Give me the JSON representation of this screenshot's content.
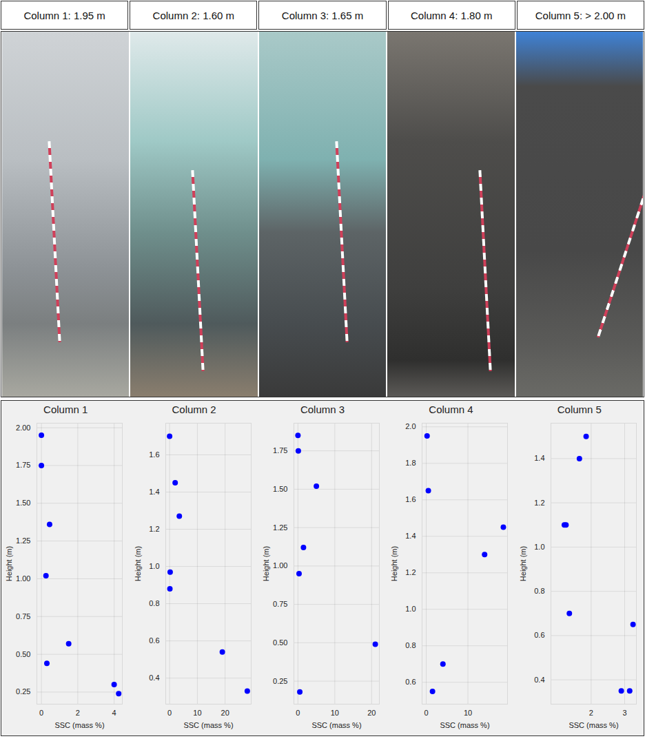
{
  "header": [
    "Column 1: 1.95 m",
    "Column 2: 1.60 m",
    "Column 3: 1.65 m",
    "Column 4: 1.80 m",
    "Column 5: > 2.00 m"
  ],
  "chart_data": [
    {
      "type": "scatter",
      "title": "Column 1",
      "xlabel": "SSC (mass %)",
      "ylabel": "Height (m)",
      "x": [
        0,
        0,
        0.45,
        0.25,
        1.5,
        0.3,
        4.0,
        4.25
      ],
      "values": [
        1.95,
        1.75,
        1.36,
        1.02,
        0.57,
        0.44,
        0.3,
        0.24
      ],
      "color": "#0000ff",
      "marker": "circle",
      "grid": true,
      "xlim": [
        -0.25,
        4.45
      ],
      "xticks": [
        0,
        2,
        4
      ],
      "ylim": [
        0.17,
        2.03
      ],
      "yticks": [
        0.25,
        {
          "value": 0.5,
          "label": "0.50"
        },
        0.75,
        {
          "value": 1,
          "label": "1.00"
        },
        1.25,
        {
          "value": 1.5,
          "label": "1.50"
        },
        1.75,
        {
          "value": 2,
          "label": "2.00"
        }
      ]
    },
    {
      "type": "scatter",
      "title": "Column 2",
      "xlabel": "SSC (mass %)",
      "ylabel": "Height (m)",
      "x": [
        0,
        2,
        3.5,
        0.2,
        0.1,
        19,
        28
      ],
      "values": [
        1.7,
        1.45,
        1.27,
        0.97,
        0.88,
        0.54,
        0.33
      ],
      "color": "#0000ff",
      "marker": "circle",
      "grid": true,
      "xlim": [
        -1.4,
        29.4
      ],
      "xticks": [
        0,
        10,
        20
      ],
      "ylim": [
        0.26,
        1.77
      ],
      "yticks": [
        0.4,
        0.6,
        0.8,
        {
          "value": 1,
          "label": "1.0"
        },
        1.2,
        1.4,
        1.6
      ]
    },
    {
      "type": "scatter",
      "title": "Column 3",
      "xlabel": "SSC (mass %)",
      "ylabel": "Height (m)",
      "x": [
        0,
        0.1,
        5,
        1.5,
        0.3,
        21,
        0.5
      ],
      "values": [
        1.85,
        1.75,
        1.52,
        1.12,
        0.95,
        0.49,
        0.18
      ],
      "color": "#0000ff",
      "marker": "circle",
      "grid": true,
      "xlim": [
        -1.1,
        22.1
      ],
      "xticks": [
        0,
        10,
        20
      ],
      "ylim": [
        0.1,
        1.93
      ],
      "yticks": [
        0.25,
        {
          "value": 0.5,
          "label": "0.50"
        },
        0.75,
        {
          "value": 1,
          "label": "1.00"
        },
        1.25,
        {
          "value": 1.5,
          "label": "1.50"
        },
        1.75
      ]
    },
    {
      "type": "scatter",
      "title": "Column 4",
      "xlabel": "SSC (mass %)",
      "ylabel": "Height (m)",
      "x": [
        0.2,
        0.5,
        18.5,
        14,
        4,
        1.5
      ],
      "values": [
        1.95,
        1.65,
        1.45,
        1.3,
        0.7,
        0.55
      ],
      "color": "#0000ff",
      "marker": "circle",
      "grid": true,
      "xlim": [
        -1,
        19.5
      ],
      "xticks": [
        0,
        10
      ],
      "ylim": [
        0.48,
        2.02
      ],
      "yticks": [
        0.6,
        0.8,
        {
          "value": 1,
          "label": "1.0"
        },
        1.2,
        1.4,
        1.6,
        1.8,
        {
          "value": 2,
          "label": "2.0"
        }
      ]
    },
    {
      "type": "scatter",
      "title": "Column 5",
      "xlabel": "SSC (mass %)",
      "ylabel": "Height (m)",
      "x": [
        1.85,
        1.65,
        1.2,
        1.25,
        1.35,
        3.25,
        2.9,
        3.15
      ],
      "values": [
        1.5,
        1.4,
        1.1,
        1.1,
        0.7,
        0.65,
        0.35,
        0.35
      ],
      "color": "#0000ff",
      "marker": "circle",
      "grid": true,
      "xlim": [
        0.8,
        3.35
      ],
      "xticks": [
        2,
        3
      ],
      "ylim": [
        0.29,
        1.56
      ],
      "yticks": [
        0.4,
        0.6,
        0.8,
        {
          "value": 1,
          "label": "1.0"
        },
        1.2,
        1.4
      ]
    }
  ]
}
